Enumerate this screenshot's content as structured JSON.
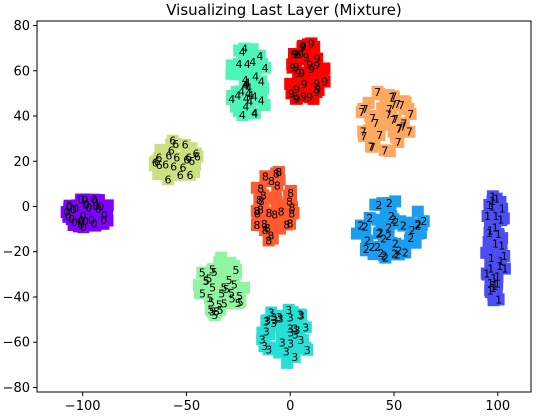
{
  "chart_data": {
    "type": "scatter",
    "title": "Visualizing Last Layer (Mixture)",
    "xlabel": "",
    "ylabel": "",
    "xlim": [
      -122,
      116
    ],
    "ylim": [
      -82,
      82
    ],
    "x_ticks": [
      -100,
      -50,
      0,
      50,
      100
    ],
    "y_ticks": [
      -80,
      -60,
      -40,
      -20,
      0,
      20,
      40,
      60,
      80
    ],
    "grid": false,
    "legend": "none",
    "marker": "square-with-digit-label",
    "series": [
      {
        "label": "0",
        "color": "#8000ff",
        "center": [
          -97,
          -3
        ],
        "spread": [
          11,
          7
        ],
        "count": 55
      },
      {
        "label": "1",
        "color": "#4d4df5",
        "center": [
          99,
          -18
        ],
        "spread": [
          5,
          24
        ],
        "count": 60
      },
      {
        "label": "2",
        "color": "#1a9ff0",
        "center": [
          48,
          -10
        ],
        "spread": [
          17,
          13
        ],
        "count": 62
      },
      {
        "label": "3",
        "color": "#26e0d8",
        "center": [
          -2,
          -57
        ],
        "spread": [
          12,
          13
        ],
        "count": 55
      },
      {
        "label": "4",
        "color": "#4df5b8",
        "center": [
          -20,
          55
        ],
        "spread": [
          10,
          16
        ],
        "count": 55
      },
      {
        "label": "5",
        "color": "#8ff5a0",
        "center": [
          -33,
          -35
        ],
        "spread": [
          11,
          14
        ],
        "count": 55
      },
      {
        "label": "6",
        "color": "#cce080",
        "center": [
          -55,
          20
        ],
        "spread": [
          11,
          10
        ],
        "count": 42
      },
      {
        "label": "7",
        "color": "#ffa860",
        "center": [
          46,
          38
        ],
        "spread": [
          14,
          14
        ],
        "count": 55
      },
      {
        "label": "8",
        "color": "#ff5a30",
        "center": [
          -8,
          0
        ],
        "spread": [
          10,
          16
        ],
        "count": 55
      },
      {
        "label": "9",
        "color": "#ff0000",
        "center": [
          8,
          58
        ],
        "spread": [
          9,
          15
        ],
        "count": 55
      }
    ]
  }
}
